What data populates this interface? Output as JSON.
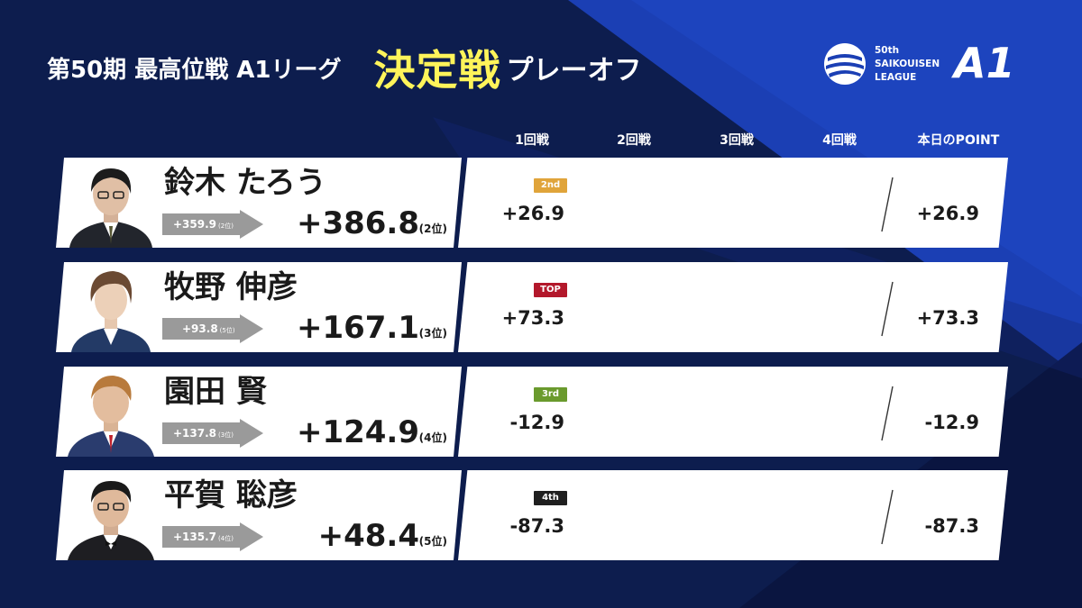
{
  "header": {
    "title_prefix": "第50期 最高位戦 A1リーグ",
    "title_main": "決定戦",
    "title_suffix": "プレーオフ"
  },
  "logo": {
    "line1": "50th",
    "line2": "SAIKOUISEN",
    "line3": "LEAGUE",
    "mark": "A1"
  },
  "columns": [
    "1回戦",
    "2回戦",
    "3回戦",
    "4回戦",
    "本日のPOINT"
  ],
  "players": [
    {
      "name": "鈴木 たろう",
      "prev_score": "+359.9",
      "prev_rank": "(2位)",
      "total": "+386.8",
      "rank": "(2位)",
      "badge": "2nd",
      "badge_color": "#e0a43a",
      "game1": "+26.9",
      "day_point": "+26.9"
    },
    {
      "name": "牧野 伸彦",
      "prev_score": "+93.8",
      "prev_rank": "(5位)",
      "total": "+167.1",
      "rank": "(3位)",
      "badge": "TOP",
      "badge_color": "#b3182b",
      "game1": "+73.3",
      "day_point": "+73.3"
    },
    {
      "name": "園田 賢",
      "prev_score": "+137.8",
      "prev_rank": "(3位)",
      "total": "+124.9",
      "rank": "(4位)",
      "badge": "3rd",
      "badge_color": "#6a9a2d",
      "game1": "-12.9",
      "day_point": "-12.9"
    },
    {
      "name": "平賀 聡彦",
      "prev_score": "+135.7",
      "prev_rank": "(4位)",
      "total": "+48.4",
      "rank": "(5位)",
      "badge": "4th",
      "badge_color": "#1f1f1f",
      "game1": "-87.3",
      "day_point": "-87.3"
    }
  ],
  "colors": {
    "background": "#0d1d4e",
    "accent_blue": "#1b3fb4",
    "title_yellow": "#fff45a",
    "prev_arrow": "#9a9a9a"
  }
}
